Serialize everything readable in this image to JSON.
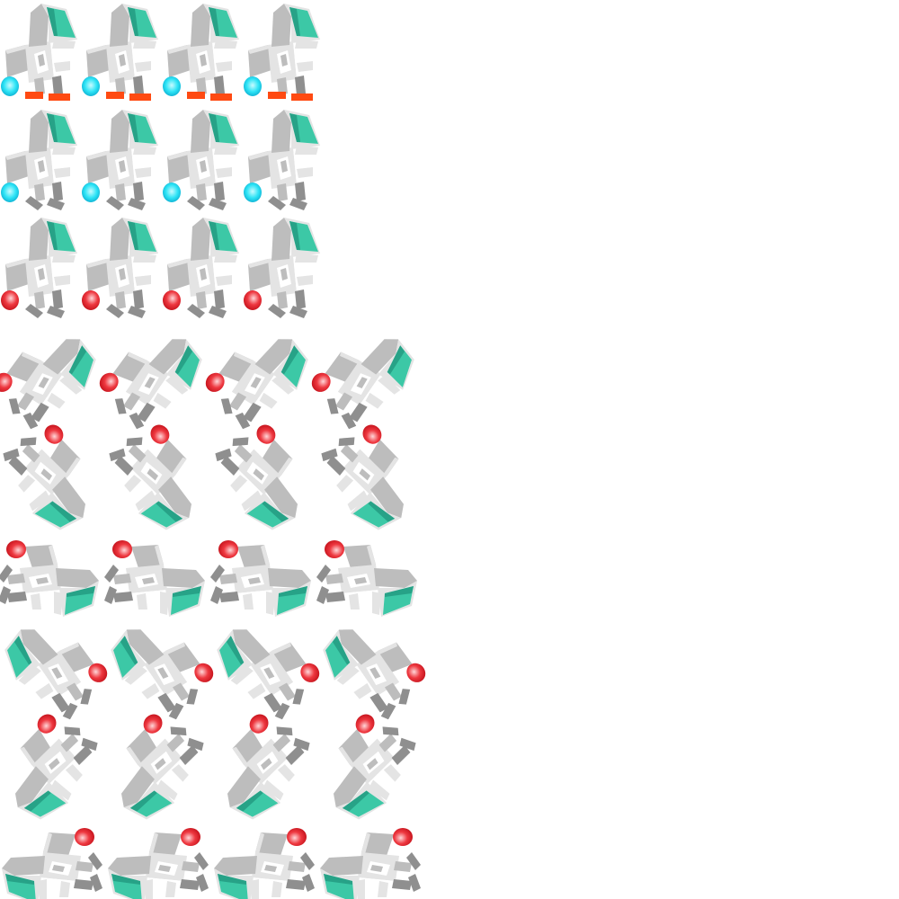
{
  "sprite_sheet": {
    "background": "#ffffff",
    "colors": {
      "visor": "#3cc8a6",
      "visor_dark": "#27a287",
      "body_light": "#e4e4e4",
      "body_mid": "#bdbdbd",
      "body_dark": "#8f8f8f",
      "white": "#ffffff",
      "thruster_blue": "#2ee4f6",
      "thruster_blue_core": "#c9fbff",
      "thruster_red": "#ee3840",
      "thruster_red_core": "#ffd6d8",
      "feet": "#ff4a12"
    },
    "rows": [
      {
        "pose": "upright-standing",
        "thruster": "blue",
        "feet": true,
        "frames": 4
      },
      {
        "pose": "upright-walking",
        "thruster": "blue",
        "feet": false,
        "frames": 4
      },
      {
        "pose": "upright-walking",
        "thruster": "red",
        "feet": false,
        "frames": 4
      },
      {
        "pose": "tilted-right",
        "thruster": "red",
        "feet": false,
        "frames": 4
      },
      {
        "pose": "tumbling-down-right",
        "thruster": "red",
        "feet": false,
        "frames": 4
      },
      {
        "pose": "sideways-right",
        "thruster": "red",
        "feet": false,
        "frames": 4
      },
      {
        "pose": "tilted-left",
        "thruster": "red",
        "feet": false,
        "frames": 4
      },
      {
        "pose": "tumbling-down-left",
        "thruster": "red",
        "feet": false,
        "frames": 4
      },
      {
        "pose": "sideways-left",
        "thruster": "red",
        "feet": false,
        "frames": 4
      }
    ]
  }
}
